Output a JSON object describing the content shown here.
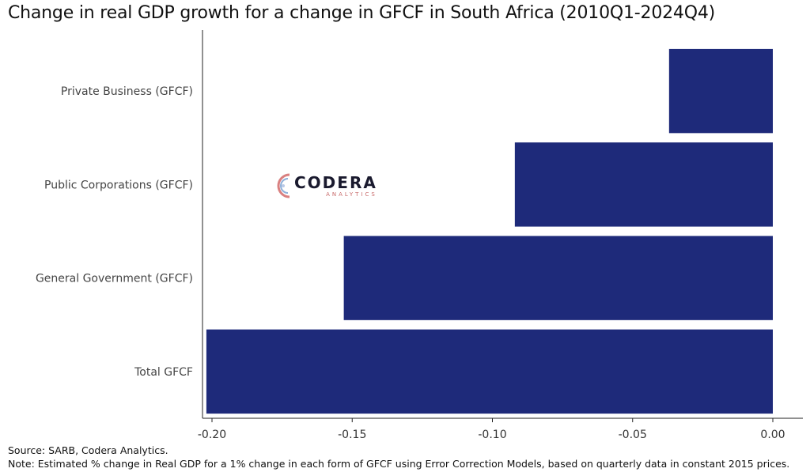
{
  "chart_data": {
    "type": "bar",
    "orientation": "horizontal",
    "title": "Change in real GDP growth for a change in GFCF in South Africa (2010Q1-2024Q4)",
    "categories": [
      "Private Business (GFCF)",
      "Public Corporations (GFCF)",
      "General Government (GFCF)",
      "Total GFCF"
    ],
    "values": [
      -0.037,
      -0.092,
      -0.153,
      -0.202
    ],
    "xlim": [
      -0.205,
      0.0
    ],
    "xticks": [
      -0.2,
      -0.15,
      -0.1,
      -0.05,
      0.0
    ],
    "xtick_labels": [
      "-0.20",
      "-0.15",
      "-0.10",
      "-0.05",
      "0.00"
    ],
    "bar_color": "#1e2a7a",
    "grid": false
  },
  "logo": {
    "name": "CODERA",
    "sub": "ANALYTICS"
  },
  "footer": {
    "source": "Source: SARB, Codera Analytics.",
    "note": "Note: Estimated % change in Real GDP for a 1% change in each form of GFCF using Error Correction Models, based on quarterly data in constant 2015 prices."
  }
}
